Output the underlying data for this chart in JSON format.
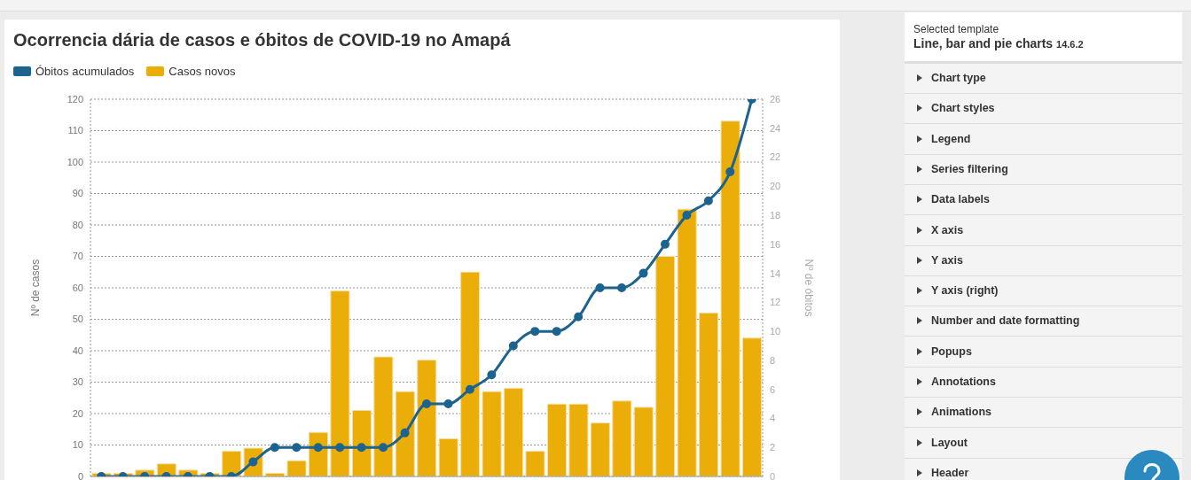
{
  "chart_data": {
    "type": "bar",
    "title": "Ocorrencia dária de casos e óbitos de COVID-19 no Amapá",
    "ylabel": "Nº de casos",
    "y2label": "Nº de óbitos",
    "categories": [
      null,
      null,
      null,
      null,
      null,
      null,
      null,
      null,
      null,
      null,
      null,
      null,
      null,
      null,
      null,
      null,
      null,
      null,
      null,
      null,
      null,
      null,
      null,
      null,
      null,
      null,
      null,
      null,
      null,
      null,
      null
    ],
    "series": [
      {
        "name": "Óbitos acumulados",
        "type": "line",
        "axis": "y2",
        "color": "#1d6390",
        "values": [
          0,
          0,
          0,
          0,
          0,
          0,
          0,
          1,
          2,
          2,
          2,
          2,
          2,
          2,
          3,
          5,
          5,
          6,
          7,
          9,
          10,
          10,
          11,
          13,
          13,
          14,
          16,
          18,
          19,
          21,
          26
        ]
      },
      {
        "name": "Casos novos",
        "color": "#ebad07",
        "values": [
          1,
          1,
          2,
          4,
          2,
          1,
          8,
          9,
          1,
          5,
          14,
          59,
          21,
          38,
          27,
          37,
          12,
          65,
          27,
          28,
          8,
          23,
          23,
          17,
          24,
          22,
          70,
          85,
          52,
          113,
          44
        ]
      }
    ],
    "ylim": [
      0,
      120
    ],
    "yticks": [
      0,
      10,
      20,
      30,
      40,
      50,
      60,
      70,
      80,
      90,
      100,
      110,
      120
    ],
    "y2lim": [
      0,
      26
    ],
    "y2ticks": [
      0,
      2,
      4,
      6,
      8,
      10,
      12,
      14,
      16,
      18,
      20,
      22,
      24,
      26
    ],
    "grid": true,
    "legend": "top left",
    "marker": "circle",
    "line_style": "solid",
    "tick_labels": "y",
    "annotations": [
      "Selected template",
      "Line, bar and pie charts",
      "14.6.2",
      "Chart type",
      "Chart styles",
      "Legend",
      "Series filtering",
      "Data labels",
      "X axis",
      "Y axis",
      "Y axis (right)",
      "Number and date formatting",
      "Popups",
      "Annotations",
      "Animations",
      "Layout",
      "Header"
    ]
  }
}
